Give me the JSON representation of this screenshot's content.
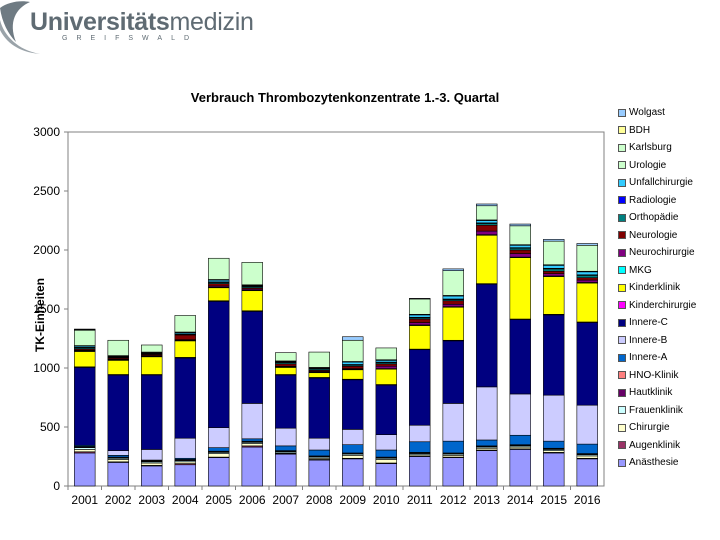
{
  "header": {
    "logo_bold": "Universitäts",
    "logo_light": "medizin",
    "logo_sub": "GREIFSWALD"
  },
  "chart_data": {
    "type": "bar",
    "stacked": true,
    "title": "Verbrauch Thrombozytenkonzentrate 1.-3. Quartal",
    "xlabel": "",
    "ylabel": "TK-Einheiten",
    "ylim": [
      0,
      3000
    ],
    "yticks": [
      0,
      500,
      1000,
      1500,
      2000,
      2500,
      3000
    ],
    "grid": false,
    "legend_position": "right",
    "categories": [
      "2001",
      "2002",
      "2003",
      "2004",
      "2005",
      "2006",
      "2007",
      "2008",
      "2009",
      "2010",
      "2011",
      "2012",
      "2013",
      "2014",
      "2015",
      "2016"
    ],
    "series": [
      {
        "name": "Anästhesie",
        "color": "#9999ff",
        "values": [
          280,
          200,
          170,
          180,
          240,
          330,
          270,
          220,
          230,
          190,
          250,
          240,
          300,
          310,
          280,
          230
        ]
      },
      {
        "name": "Augenklinik",
        "color": "#993366",
        "values": [
          10,
          5,
          5,
          10,
          5,
          10,
          5,
          5,
          5,
          5,
          5,
          5,
          5,
          5,
          5,
          5
        ]
      },
      {
        "name": "Chirurgie",
        "color": "#ffffcc",
        "values": [
          20,
          20,
          20,
          15,
          30,
          20,
          5,
          10,
          25,
          30,
          10,
          15,
          15,
          15,
          15,
          20
        ]
      },
      {
        "name": "Frauenklinik",
        "color": "#ccffff",
        "values": [
          15,
          10,
          10,
          10,
          10,
          10,
          10,
          10,
          10,
          10,
          10,
          10,
          10,
          10,
          10,
          10
        ]
      },
      {
        "name": "Hautklinik",
        "color": "#660066",
        "values": [
          5,
          5,
          5,
          5,
          5,
          5,
          5,
          5,
          5,
          5,
          5,
          5,
          5,
          5,
          5,
          5
        ]
      },
      {
        "name": "HNO-Klinik",
        "color": "#ff8080",
        "values": [
          5,
          5,
          5,
          5,
          5,
          5,
          5,
          5,
          5,
          5,
          5,
          5,
          5,
          5,
          5,
          5
        ]
      },
      {
        "name": "Innere-A",
        "color": "#0066cc",
        "values": [
          10,
          15,
          5,
          10,
          30,
          20,
          40,
          50,
          70,
          60,
          90,
          100,
          50,
          80,
          60,
          80
        ]
      },
      {
        "name": "Innere-B",
        "color": "#ccccff",
        "values": [
          0,
          40,
          90,
          170,
          170,
          300,
          150,
          100,
          130,
          130,
          140,
          320,
          450,
          350,
          390,
          330
        ]
      },
      {
        "name": "Innere-C",
        "color": "#000080",
        "values": [
          660,
          640,
          630,
          680,
          1070,
          780,
          450,
          510,
          420,
          420,
          640,
          530,
          870,
          630,
          680,
          700
        ]
      },
      {
        "name": "Kinderchirurgie",
        "color": "#ff00ff",
        "values": [
          5,
          5,
          5,
          5,
          5,
          5,
          5,
          5,
          5,
          5,
          5,
          5,
          5,
          5,
          5,
          5
        ]
      },
      {
        "name": "Kinderklinik",
        "color": "#ffff00",
        "values": [
          130,
          120,
          150,
          140,
          110,
          170,
          60,
          40,
          80,
          130,
          200,
          280,
          410,
          520,
          320,
          330
        ]
      },
      {
        "name": "MKG",
        "color": "#00ffff",
        "values": [
          5,
          5,
          5,
          5,
          5,
          5,
          5,
          5,
          5,
          5,
          5,
          5,
          5,
          5,
          5,
          5
        ]
      },
      {
        "name": "Neurochirurgie",
        "color": "#800080",
        "values": [
          5,
          5,
          5,
          5,
          10,
          10,
          5,
          5,
          5,
          20,
          20,
          20,
          30,
          30,
          20,
          20
        ]
      },
      {
        "name": "Neurologie",
        "color": "#800000",
        "values": [
          10,
          10,
          10,
          40,
          20,
          10,
          20,
          10,
          20,
          20,
          30,
          30,
          50,
          30,
          20,
          20
        ]
      },
      {
        "name": "Orthopädie",
        "color": "#008080",
        "values": [
          10,
          5,
          5,
          5,
          10,
          10,
          10,
          10,
          10,
          10,
          10,
          10,
          15,
          15,
          20,
          20
        ]
      },
      {
        "name": "Radiologie",
        "color": "#0000ff",
        "values": [
          5,
          5,
          5,
          5,
          5,
          5,
          5,
          5,
          5,
          5,
          5,
          5,
          5,
          5,
          5,
          5
        ]
      },
      {
        "name": "Unfallchirurgie",
        "color": "#33ccff",
        "values": [
          10,
          5,
          5,
          10,
          15,
          5,
          5,
          5,
          20,
          15,
          20,
          25,
          20,
          20,
          25,
          25
        ]
      },
      {
        "name": "Urologie",
        "color": "#ccffcc",
        "values": [
          5,
          5,
          5,
          5,
          5,
          5,
          5,
          5,
          5,
          5,
          5,
          5,
          5,
          5,
          5,
          5
        ]
      },
      {
        "name": "Karlsburg",
        "color": "#ccffcc",
        "values": [
          130,
          130,
          60,
          140,
          180,
          190,
          70,
          130,
          180,
          100,
          130,
          210,
          120,
          160,
          200,
          220
        ]
      },
      {
        "name": "BDH",
        "color": "#ffff99",
        "values": [
          5,
          0,
          0,
          0,
          0,
          0,
          0,
          0,
          0,
          0,
          0,
          0,
          0,
          0,
          0,
          0
        ]
      },
      {
        "name": "Wolgast",
        "color": "#99ccff",
        "values": [
          5,
          0,
          0,
          0,
          0,
          0,
          0,
          0,
          30,
          0,
          5,
          15,
          15,
          15,
          15,
          15
        ]
      }
    ]
  }
}
